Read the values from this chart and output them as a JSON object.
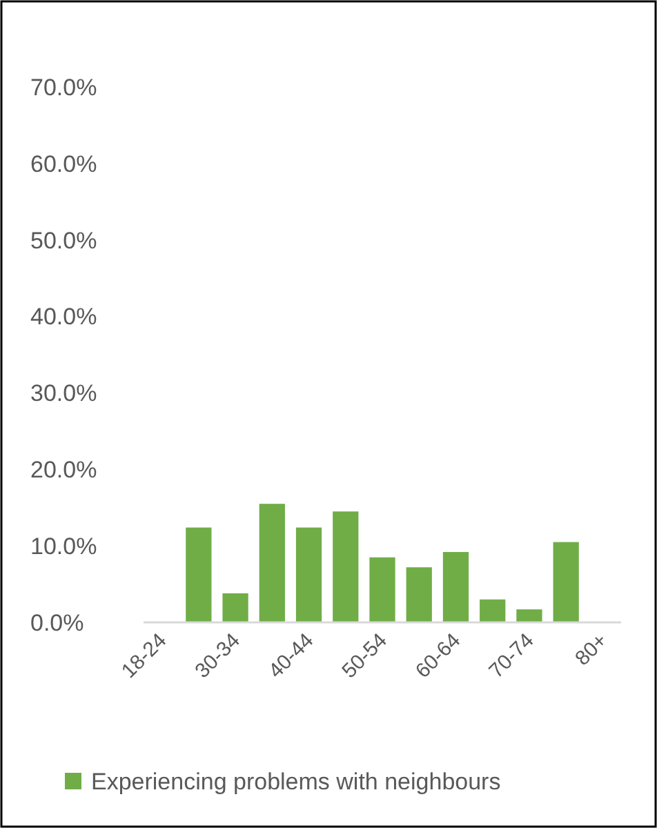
{
  "chart_data": {
    "type": "bar",
    "categories": [
      "18-24",
      null,
      "30-34",
      null,
      "40-44",
      null,
      "50-54",
      null,
      "60-64",
      null,
      "70-74",
      null,
      "80+"
    ],
    "series": [
      {
        "name": "Experiencing problems with neighbours",
        "color": "#70ad47",
        "values": [
          null,
          12.4,
          3.8,
          15.5,
          12.4,
          14.5,
          8.5,
          7.2,
          9.2,
          3.0,
          1.7,
          10.5,
          null
        ]
      }
    ],
    "ylim": [
      0,
      70
    ],
    "yticks": [
      {
        "value": 0,
        "label": "0.0%"
      },
      {
        "value": 10,
        "label": "10.0%"
      },
      {
        "value": 20,
        "label": "20.0%"
      },
      {
        "value": 30,
        "label": "30.0%"
      },
      {
        "value": 40,
        "label": "40.0%"
      },
      {
        "value": 50,
        "label": "50.0%"
      },
      {
        "value": 60,
        "label": "60.0%"
      },
      {
        "value": 70,
        "label": "70.0%"
      }
    ],
    "grid": false,
    "legend": "bottom"
  }
}
